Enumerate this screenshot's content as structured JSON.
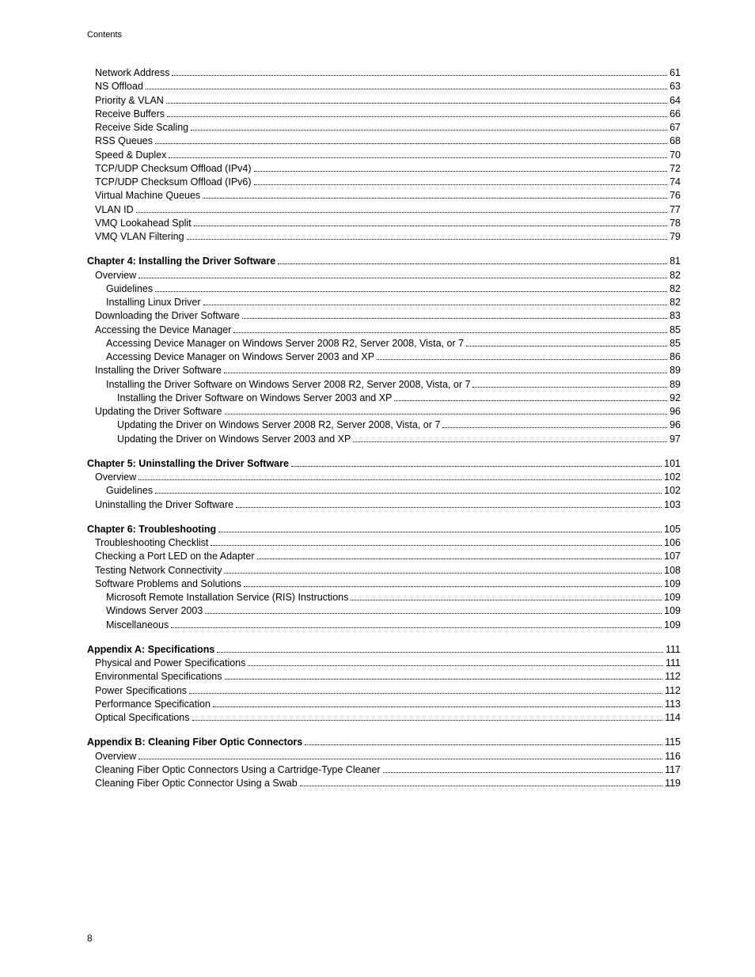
{
  "header": "Contents",
  "pageNumber": "8",
  "groups": [
    {
      "entries": [
        {
          "label": "Network Address",
          "page": "61",
          "indent": 1,
          "bold": false
        },
        {
          "label": "NS Offload",
          "page": "63",
          "indent": 1,
          "bold": false
        },
        {
          "label": "Priority & VLAN",
          "page": "64",
          "indent": 1,
          "bold": false
        },
        {
          "label": "Receive Buffers",
          "page": "66",
          "indent": 1,
          "bold": false
        },
        {
          "label": "Receive Side Scaling",
          "page": "67",
          "indent": 1,
          "bold": false
        },
        {
          "label": "RSS Queues",
          "page": "68",
          "indent": 1,
          "bold": false
        },
        {
          "label": "Speed & Duplex",
          "page": "70",
          "indent": 1,
          "bold": false
        },
        {
          "label": "TCP/UDP Checksum Offload (IPv4)",
          "page": "72",
          "indent": 1,
          "bold": false
        },
        {
          "label": "TCP/UDP Checksum Offload (IPv6)",
          "page": "74",
          "indent": 1,
          "bold": false
        },
        {
          "label": "Virtual Machine Queues",
          "page": "76",
          "indent": 1,
          "bold": false
        },
        {
          "label": "VLAN ID",
          "page": "77",
          "indent": 1,
          "bold": false
        },
        {
          "label": "VMQ Lookahead Split",
          "page": "78",
          "indent": 1,
          "bold": false
        },
        {
          "label": "VMQ VLAN Filtering",
          "page": "79",
          "indent": 1,
          "bold": false
        }
      ]
    },
    {
      "entries": [
        {
          "label": "Chapter 4: Installing the Driver Software ",
          "page": "81",
          "indent": 0,
          "bold": true
        },
        {
          "label": "Overview",
          "page": "82",
          "indent": 1,
          "bold": false
        },
        {
          "label": "Guidelines",
          "page": "82",
          "indent": 2,
          "bold": false
        },
        {
          "label": "Installing Linux Driver",
          "page": "82",
          "indent": 2,
          "bold": false
        },
        {
          "label": "Downloading the Driver Software",
          "page": "83",
          "indent": 1,
          "bold": false
        },
        {
          "label": "Accessing the Device Manager",
          "page": "85",
          "indent": 1,
          "bold": false
        },
        {
          "label": "Accessing Device Manager on Windows Server 2008 R2, Server 2008, Vista, or 7",
          "page": "85",
          "indent": 2,
          "bold": false
        },
        {
          "label": "Accessing Device Manager on Windows Server 2003 and XP",
          "page": "86",
          "indent": 2,
          "bold": false
        },
        {
          "label": "Installing the Driver Software",
          "page": "89",
          "indent": 1,
          "bold": false
        },
        {
          "label": "Installing the Driver Software on Windows Server 2008 R2, Server 2008, Vista, or 7",
          "page": "89",
          "indent": 2,
          "bold": false
        },
        {
          "label": "Installing the Driver Software on Windows Server 2003 and XP",
          "page": "92",
          "indent": 3,
          "bold": false
        },
        {
          "label": "Updating the Driver Software",
          "page": "96",
          "indent": 1,
          "bold": false
        },
        {
          "label": "Updating the Driver on Windows Server 2008 R2, Server 2008, Vista, or 7",
          "page": "96",
          "indent": 3,
          "bold": false
        },
        {
          "label": "Updating the Driver on Windows Server 2003 and XP",
          "page": "97",
          "indent": 3,
          "bold": false
        }
      ]
    },
    {
      "entries": [
        {
          "label": "Chapter 5: Uninstalling the Driver Software ",
          "page": "101",
          "indent": 0,
          "bold": true
        },
        {
          "label": "Overview",
          "page": "102",
          "indent": 1,
          "bold": false
        },
        {
          "label": "Guidelines",
          "page": "102",
          "indent": 2,
          "bold": false
        },
        {
          "label": "Uninstalling the Driver Software",
          "page": "103",
          "indent": 1,
          "bold": false
        }
      ]
    },
    {
      "entries": [
        {
          "label": "Chapter 6: Troubleshooting ",
          "page": "105",
          "indent": 0,
          "bold": true
        },
        {
          "label": "Troubleshooting Checklist",
          "page": "106",
          "indent": 1,
          "bold": false
        },
        {
          "label": "Checking a Port LED on the Adapter",
          "page": "107",
          "indent": 1,
          "bold": false
        },
        {
          "label": "Testing Network Connectivity",
          "page": "108",
          "indent": 1,
          "bold": false
        },
        {
          "label": "Software Problems and Solutions",
          "page": "109",
          "indent": 1,
          "bold": false
        },
        {
          "label": "Microsoft Remote Installation Service (RIS) Instructions",
          "page": "109",
          "indent": 2,
          "bold": false
        },
        {
          "label": "Windows Server 2003",
          "page": "109",
          "indent": 2,
          "bold": false
        },
        {
          "label": "Miscellaneous",
          "page": "109",
          "indent": 2,
          "bold": false
        }
      ]
    },
    {
      "entries": [
        {
          "label": "Appendix A: Specifications ",
          "page": "111",
          "indent": 0,
          "bold": true
        },
        {
          "label": "Physical and Power Specifications",
          "page": "111",
          "indent": 1,
          "bold": false
        },
        {
          "label": "Environmental Specifications",
          "page": "112",
          "indent": 1,
          "bold": false
        },
        {
          "label": "Power Specifications",
          "page": "112",
          "indent": 1,
          "bold": false
        },
        {
          "label": "Performance Specification",
          "page": "113",
          "indent": 1,
          "bold": false
        },
        {
          "label": "Optical Specifications",
          "page": "114",
          "indent": 1,
          "bold": false
        }
      ]
    },
    {
      "entries": [
        {
          "label": "Appendix B: Cleaning Fiber Optic Connectors ",
          "page": "115",
          "indent": 0,
          "bold": true
        },
        {
          "label": "Overview",
          "page": "116",
          "indent": 1,
          "bold": false
        },
        {
          "label": "Cleaning Fiber Optic Connectors Using a Cartridge-Type Cleaner",
          "page": "117",
          "indent": 1,
          "bold": false
        },
        {
          "label": "Cleaning Fiber Optic Connector Using a Swab",
          "page": "119",
          "indent": 1,
          "bold": false
        }
      ]
    }
  ]
}
